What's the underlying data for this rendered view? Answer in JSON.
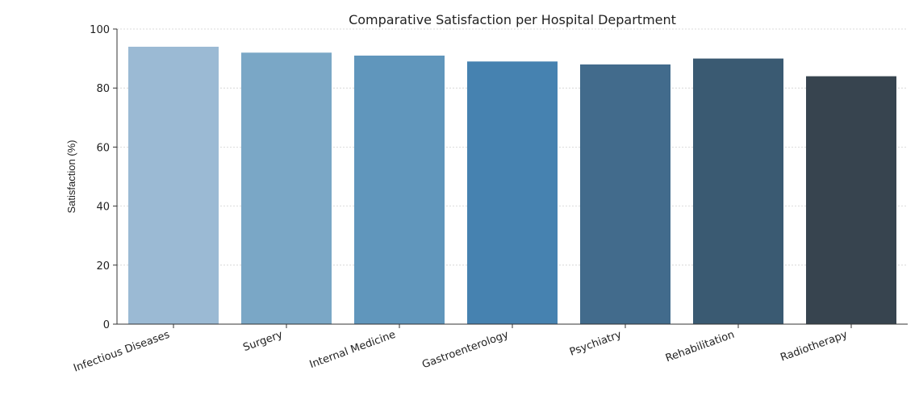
{
  "chart_data": {
    "type": "bar",
    "title": "Comparative Satisfaction per Hospital Department",
    "xlabel": "",
    "ylabel": "Satisfaction (%)",
    "categories": [
      "Infectious Diseases",
      "Surgery",
      "Internal Medicine",
      "Gastroenterology",
      "Psychiatry",
      "Rehabilitation",
      "Radiotherapy"
    ],
    "values": [
      94,
      92,
      91,
      89,
      88,
      90,
      84
    ],
    "ylim": [
      0,
      100
    ],
    "yticks": [
      0,
      20,
      40,
      60,
      80,
      100
    ],
    "grid": true,
    "legend": "none",
    "colors": [
      "#9bbad4",
      "#7aa7c6",
      "#6096bc",
      "#4682b0",
      "#426b8c",
      "#3a5a72",
      "#37444f"
    ]
  }
}
